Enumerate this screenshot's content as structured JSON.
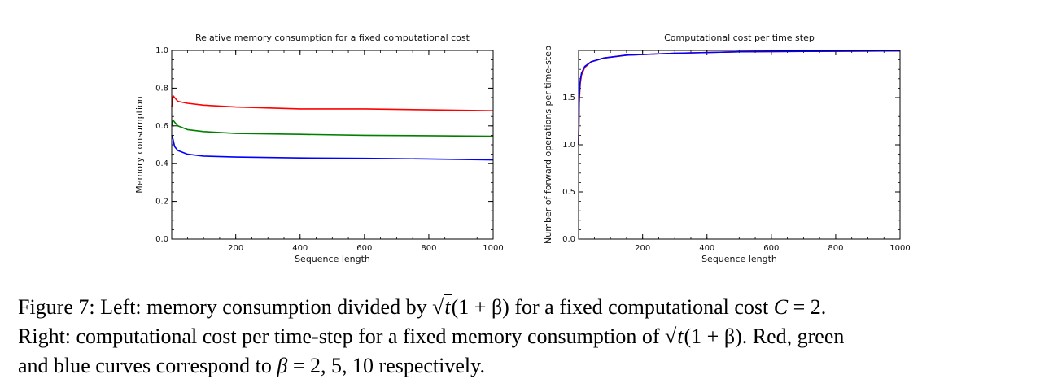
{
  "caption": {
    "label": "Figure 7:",
    "line1_a": "Left: memory consumption divided by",
    "sqrt_symbol": "√",
    "sqrt_arg": "t",
    "paren_expr": "(1 + β)",
    "line1_b": "for a fixed computational cost",
    "cost_var": "C",
    "cost_eq": "= 2.",
    "line2_a": "Right: computational cost per time-step for a fixed memory consumption of",
    "line2_b": ". Red, green",
    "line3_a": "and blue curves correspond to",
    "beta_var": "β",
    "beta_eq": "= 2, 5, 10",
    "line3_b": "respectively."
  },
  "chart_data": [
    {
      "type": "line",
      "title": "Relative memory consumption for a fixed computational cost",
      "xlabel": "Sequence length",
      "ylabel": "Memory consumption",
      "xlim": [
        1,
        1000
      ],
      "ylim": [
        0.0,
        1.0
      ],
      "xticks": [
        200,
        400,
        600,
        800,
        1000
      ],
      "yticks": [
        0.0,
        0.2,
        0.4,
        0.6,
        0.8,
        1.0
      ],
      "ytick_labels": [
        "0.0",
        "0.2",
        "0.4",
        "0.6",
        "0.8",
        "1.0"
      ],
      "grid": false,
      "series": [
        {
          "color": "#ff0000",
          "x": [
            1,
            5,
            10,
            20,
            50,
            100,
            200,
            400,
            600,
            800,
            1000
          ],
          "y": [
            0.7,
            0.76,
            0.75,
            0.73,
            0.72,
            0.71,
            0.7,
            0.69,
            0.69,
            0.685,
            0.68
          ]
        },
        {
          "color": "#008000",
          "x": [
            1,
            5,
            10,
            20,
            50,
            100,
            200,
            400,
            600,
            800,
            1000
          ],
          "y": [
            0.6,
            0.63,
            0.62,
            0.6,
            0.58,
            0.57,
            0.56,
            0.555,
            0.55,
            0.548,
            0.545
          ]
        },
        {
          "color": "#0000ff",
          "x": [
            1,
            5,
            10,
            20,
            50,
            100,
            200,
            400,
            600,
            800,
            1000
          ],
          "y": [
            0.55,
            0.53,
            0.49,
            0.47,
            0.45,
            0.44,
            0.435,
            0.43,
            0.428,
            0.425,
            0.42
          ]
        }
      ]
    },
    {
      "type": "line",
      "title": "Computational cost per time step",
      "xlabel": "Sequence length",
      "ylabel": "Number of forward operations per time-step",
      "xlim": [
        1,
        1000
      ],
      "ylim": [
        0.0,
        2.0
      ],
      "xticks": [
        200,
        400,
        600,
        800,
        1000
      ],
      "yticks": [
        0.0,
        0.5,
        1.0,
        1.5
      ],
      "ytick_labels": [
        "0.0",
        "0.5",
        "1.0",
        "1.5"
      ],
      "grid": false,
      "series": [
        {
          "color": "#ff0000",
          "x": [
            1,
            3,
            6,
            10,
            20,
            40,
            80,
            150,
            300,
            500,
            700,
            1000
          ],
          "y": [
            1.0,
            1.45,
            1.65,
            1.74,
            1.82,
            1.88,
            1.92,
            1.95,
            1.97,
            1.985,
            1.99,
            1.995
          ]
        },
        {
          "color": "#0000ff",
          "x": [
            1,
            3,
            6,
            10,
            20,
            40,
            80,
            150,
            300,
            500,
            700,
            1000
          ],
          "y": [
            1.0,
            1.5,
            1.68,
            1.76,
            1.83,
            1.88,
            1.92,
            1.95,
            1.97,
            1.985,
            1.99,
            1.995
          ]
        }
      ]
    }
  ]
}
